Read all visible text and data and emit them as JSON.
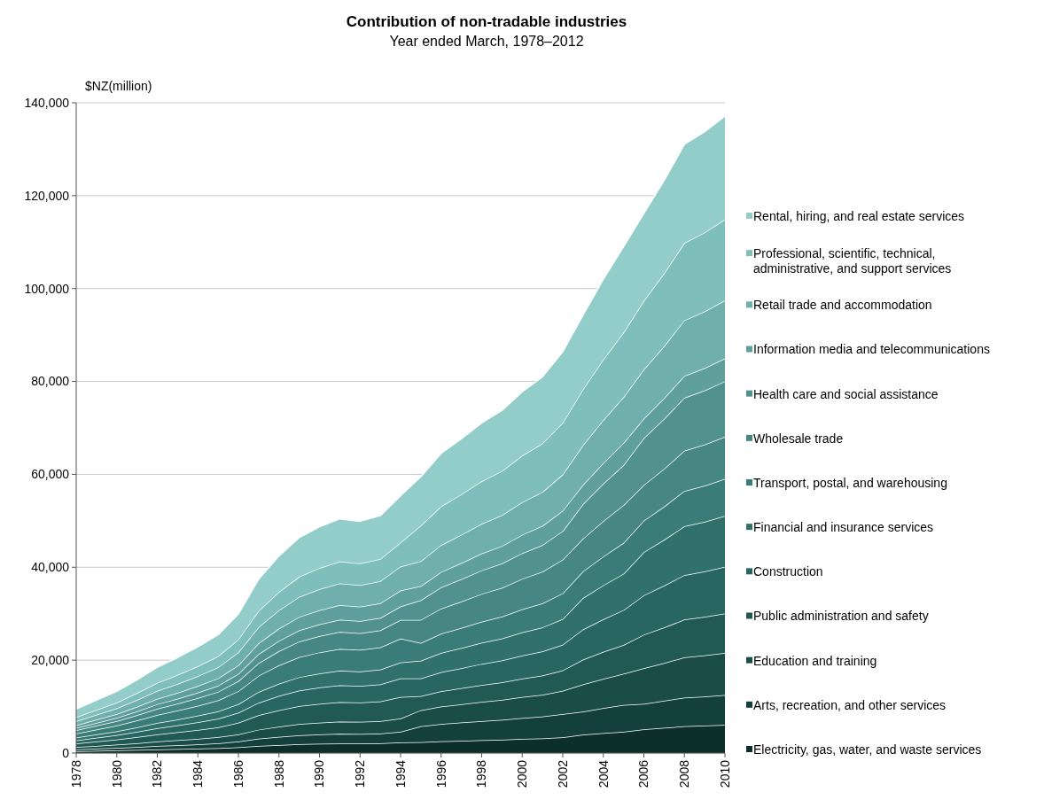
{
  "chart_data": {
    "type": "area",
    "stacked": true,
    "title": "Contribution of non-tradable industries",
    "subtitle": "Year ended March, 1978–2012",
    "ylabel": "$NZ(million)",
    "x": [
      1978,
      1979,
      1980,
      1981,
      1982,
      1983,
      1984,
      1985,
      1986,
      1987,
      1988,
      1989,
      1990,
      1991,
      1992,
      1993,
      1994,
      1995,
      1996,
      1997,
      1998,
      1999,
      2000,
      2001,
      2002,
      2003,
      2004,
      2005,
      2006,
      2007,
      2008,
      2009,
      2010
    ],
    "xlim": [
      1978,
      2010
    ],
    "xticks": [
      1978,
      1980,
      1982,
      1984,
      1986,
      1988,
      1990,
      1992,
      1994,
      1996,
      1998,
      2000,
      2002,
      2004,
      2006,
      2008,
      2010
    ],
    "ylim": [
      0,
      140000
    ],
    "yticks": [
      {
        "value": 0,
        "label": "0"
      },
      {
        "value": 20000,
        "label": "20,000"
      },
      {
        "value": 40000,
        "label": "40,000"
      },
      {
        "value": 60000,
        "label": "60,000"
      },
      {
        "value": 80000,
        "label": "80,000"
      },
      {
        "value": 100000,
        "label": "100,000"
      },
      {
        "value": 120000,
        "label": "120,000"
      },
      {
        "value": 140000,
        "label": "140,000"
      }
    ],
    "grid": "y",
    "legend": "right",
    "series": [
      {
        "name": "Electricity, gas, water, and waste services",
        "color": "#0d2f2c",
        "values": [
          390,
          470,
          550,
          650,
          760,
          840,
          940,
          1050,
          1230,
          1540,
          1740,
          1910,
          2000,
          2070,
          2050,
          2100,
          2280,
          2320,
          2520,
          2640,
          2770,
          2880,
          3030,
          3160,
          3370,
          3950,
          4270,
          4570,
          5120,
          5430,
          5770,
          5890,
          6040
        ]
      },
      {
        "name": "Arts, recreation, and other services",
        "color": "#13403c",
        "values": [
          390,
          470,
          550,
          650,
          760,
          840,
          940,
          1050,
          1230,
          1540,
          1740,
          1910,
          2000,
          2070,
          2050,
          2100,
          2280,
          3450,
          3740,
          3930,
          4120,
          4280,
          4510,
          4700,
          5010,
          4980,
          5390,
          5760,
          5470,
          5800,
          6170,
          6290,
          6450
        ]
      },
      {
        "name": "Education and training",
        "color": "#1a4d48",
        "values": [
          490,
          590,
          690,
          820,
          960,
          1070,
          1190,
          1330,
          1560,
          1950,
          2210,
          2420,
          2540,
          2630,
          2600,
          2660,
          2890,
          3450,
          3740,
          3930,
          4120,
          4280,
          4510,
          4700,
          5010,
          5830,
          6310,
          6740,
          7680,
          8140,
          8660,
          8840,
          9060
        ]
      },
      {
        "name": "Public administration and safety",
        "color": "#215a55",
        "values": [
          790,
          950,
          1100,
          1310,
          1540,
          1710,
          1900,
          2120,
          2490,
          3110,
          3530,
          3860,
          4050,
          4190,
          4150,
          4250,
          4610,
          3030,
          3290,
          3450,
          3630,
          3760,
          3970,
          4130,
          4410,
          5360,
          5800,
          6200,
          7210,
          7650,
          8130,
          8300,
          8510
        ]
      },
      {
        "name": "Construction",
        "color": "#286661",
        "values": [
          680,
          820,
          960,
          1140,
          1330,
          1480,
          1650,
          1840,
          2160,
          2700,
          3060,
          3350,
          3510,
          3640,
          3600,
          3690,
          4000,
          3810,
          4130,
          4330,
          4550,
          4720,
          4980,
          5180,
          5530,
          6490,
          7020,
          7500,
          8490,
          9010,
          9580,
          9770,
          10020
        ]
      },
      {
        "name": "Financial and insurance services",
        "color": "#30716c",
        "values": [
          590,
          710,
          820,
          980,
          1150,
          1280,
          1420,
          1580,
          1860,
          2330,
          2640,
          2880,
          3030,
          3130,
          3100,
          3170,
          3440,
          3810,
          4130,
          4330,
          4550,
          4720,
          4980,
          5180,
          5530,
          6770,
          7320,
          7830,
          9300,
          9870,
          10500,
          10710,
          10980
        ]
      },
      {
        "name": "Transport, postal, and warehousing",
        "color": "#3a7c77",
        "values": [
          880,
          1060,
          1240,
          1470,
          1720,
          1920,
          2130,
          2370,
          2790,
          3490,
          3950,
          4320,
          4540,
          4700,
          4650,
          4760,
          5160,
          3810,
          4130,
          4330,
          4550,
          4720,
          4980,
          5180,
          5530,
          5730,
          6200,
          6630,
          6750,
          7160,
          7610,
          7770,
          7960
        ]
      },
      {
        "name": "Wholesale trade",
        "color": "#468783",
        "values": [
          680,
          820,
          960,
          1140,
          1330,
          1480,
          1650,
          1840,
          2160,
          2700,
          3060,
          3350,
          3510,
          3640,
          3600,
          3690,
          4000,
          5000,
          5420,
          5690,
          5970,
          6200,
          6540,
          6800,
          7260,
          7050,
          7630,
          8150,
          7680,
          8140,
          8660,
          8840,
          9060
        ]
      },
      {
        "name": "Health care and social assistance",
        "color": "#52928e",
        "values": [
          490,
          590,
          690,
          820,
          960,
          1070,
          1190,
          1330,
          1560,
          1950,
          2210,
          2420,
          2540,
          2630,
          2600,
          2660,
          2890,
          4220,
          4580,
          4810,
          5050,
          5240,
          5520,
          5750,
          6130,
          7430,
          8030,
          8590,
          10120,
          10740,
          11410,
          11650,
          11950
        ]
      },
      {
        "name": "Information media and telecommunications",
        "color": "#60a09c",
        "values": [
          590,
          710,
          820,
          980,
          1150,
          1280,
          1420,
          1580,
          1860,
          2330,
          2640,
          2880,
          3030,
          3130,
          3100,
          3170,
          3440,
          3030,
          3290,
          3450,
          3630,
          3760,
          3970,
          4130,
          4410,
          4140,
          4470,
          4780,
          4190,
          4440,
          4720,
          4820,
          4940
        ]
      },
      {
        "name": "Retail trade and accommodation",
        "color": "#6fb0ac",
        "values": [
          880,
          1060,
          1240,
          1470,
          1720,
          1920,
          2130,
          2370,
          2790,
          3490,
          3950,
          4320,
          4540,
          4700,
          4650,
          4760,
          5160,
          5360,
          5810,
          6090,
          6400,
          6640,
          7000,
          7290,
          7780,
          8550,
          9250,
          9890,
          10580,
          11230,
          11940,
          12180,
          12490
        ]
      },
      {
        "name": "Professional, scientific, technical, administrative, and support services",
        "color": "#7ebebb",
        "values": [
          880,
          1060,
          1240,
          1470,
          1720,
          1920,
          2130,
          2370,
          2790,
          3490,
          3950,
          4320,
          4540,
          4700,
          4650,
          4760,
          5160,
          7680,
          8320,
          8730,
          9170,
          9520,
          10040,
          10450,
          11150,
          12030,
          13020,
          13910,
          14770,
          15670,
          16660,
          17010,
          17440
        ]
      },
      {
        "name": "Rental, hiring, and real estate services",
        "color": "#93cdca",
        "values": [
          1730,
          2070,
          2420,
          2880,
          3370,
          3750,
          4170,
          4640,
          5460,
          6830,
          7740,
          8460,
          8880,
          9190,
          9100,
          9320,
          10100,
          10530,
          11420,
          11980,
          12580,
          13060,
          13770,
          14340,
          15290,
          15980,
          17290,
          18480,
          18840,
          19990,
          21250,
          21690,
          22240
        ]
      }
    ]
  }
}
